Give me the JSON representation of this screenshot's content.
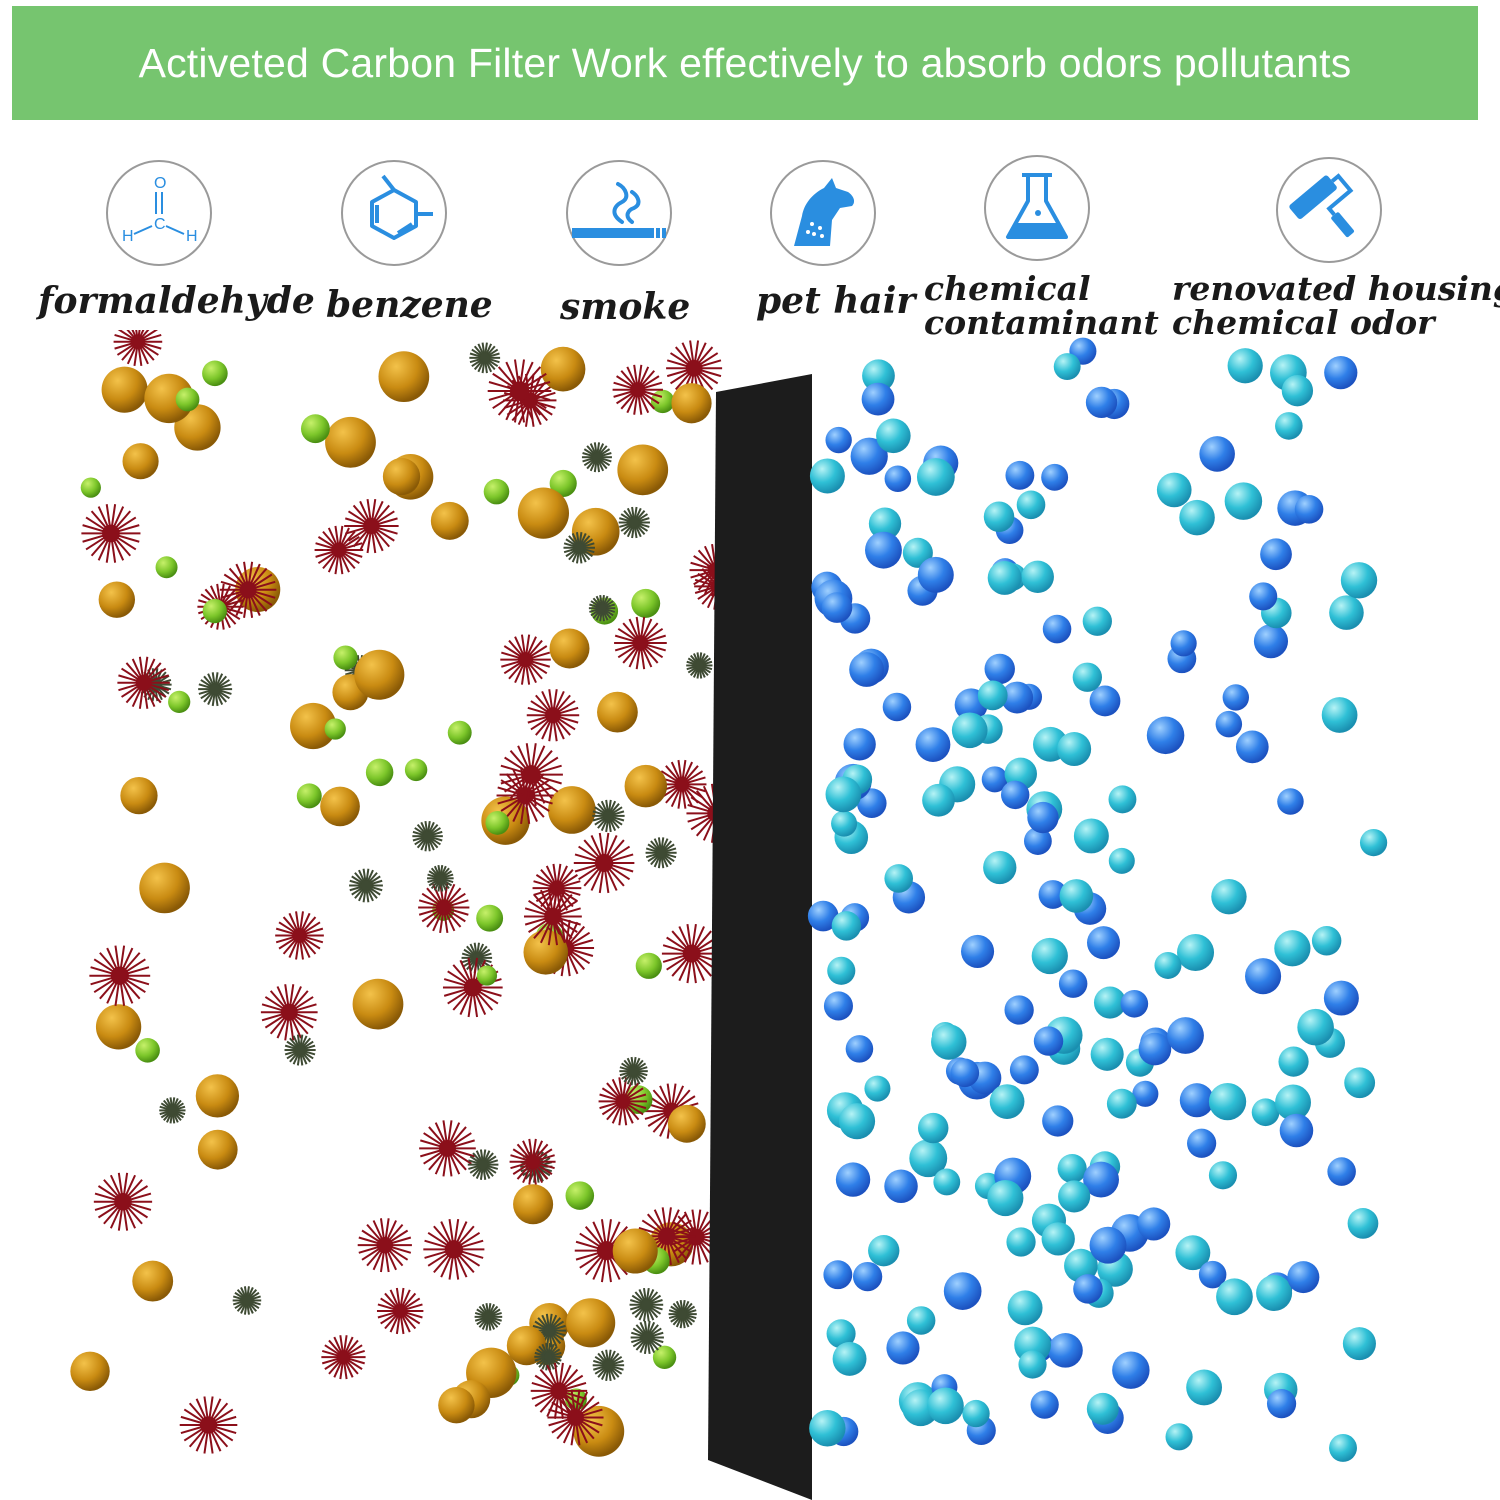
{
  "banner": {
    "title": "Activeted Carbon Filter Work effectively to absorb odors pollutants",
    "color": "#76c56f"
  },
  "pollutants": [
    {
      "icon": "formaldehyde-icon",
      "label": "formaldehyde"
    },
    {
      "icon": "benzene-icon",
      "label": "benzene"
    },
    {
      "icon": "smoke-icon",
      "label": "smoke"
    },
    {
      "icon": "pet-hair-icon",
      "label": "pet hair"
    },
    {
      "icon": "flask-icon",
      "label_line1": "chemical",
      "label_line2": "contaminant"
    },
    {
      "icon": "paint-roller-icon",
      "label_line1": "renovated housing",
      "label_line2": "chemical odor"
    }
  ],
  "formaldehyde_atoms": {
    "o": "O",
    "h1": "H",
    "c": "C",
    "h2": "H"
  },
  "colors": {
    "icon_blue": "#2a8ee0",
    "filter": "#1c1c1c",
    "gold_particle": "#c98b12",
    "green_particle": "#7cc62a",
    "red_particle": "#8b0f1a",
    "dark_particle": "#3e4a33",
    "clean_blue": "#2f7fe8",
    "clean_cyan": "#2fc0d6"
  }
}
